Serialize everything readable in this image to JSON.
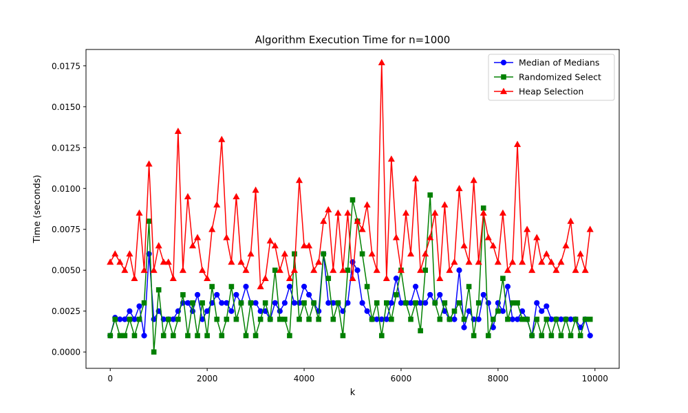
{
  "chart_data": {
    "type": "line",
    "title": "Algorithm Execution Time for n=1000",
    "xlabel": "k",
    "ylabel": "Time (seconds)",
    "xlim": [
      -500,
      10500
    ],
    "ylim": [
      -0.001,
      0.0185
    ],
    "xticks": [
      0,
      2000,
      4000,
      6000,
      8000,
      10000
    ],
    "xtick_labels": [
      "0",
      "2000",
      "4000",
      "6000",
      "8000",
      "10000"
    ],
    "yticks": [
      0.0,
      0.0025,
      0.005,
      0.0075,
      0.01,
      0.0125,
      0.015,
      0.0175
    ],
    "ytick_labels": [
      "0.0000",
      "0.0025",
      "0.0050",
      "0.0075",
      "0.0100",
      "0.0125",
      "0.0150",
      "0.0175"
    ],
    "grid": false,
    "legend": "top-right",
    "series": [
      {
        "name": "Median of Medians",
        "color": "#0000ff",
        "marker": "circle",
        "x": [
          0,
          100,
          200,
          300,
          400,
          500,
          600,
          700,
          800,
          900,
          1000,
          1100,
          1200,
          1300,
          1400,
          1500,
          1600,
          1700,
          1800,
          1900,
          2000,
          2100,
          2200,
          2300,
          2400,
          2500,
          2600,
          2700,
          2800,
          2900,
          3000,
          3100,
          3200,
          3300,
          3400,
          3500,
          3600,
          3700,
          3800,
          3900,
          4000,
          4100,
          4200,
          4300,
          4400,
          4500,
          4600,
          4700,
          4800,
          4900,
          5000,
          5100,
          5200,
          5300,
          5400,
          5500,
          5600,
          5700,
          5800,
          5900,
          6000,
          6100,
          6200,
          6300,
          6400,
          6500,
          6600,
          6700,
          6800,
          6900,
          7000,
          7100,
          7200,
          7300,
          7400,
          7500,
          7600,
          7700,
          7800,
          7900,
          8000,
          8100,
          8200,
          8300,
          8400,
          8500,
          8600,
          8700,
          8800,
          8900,
          9000,
          9100,
          9200,
          9300,
          9400,
          9500,
          9600,
          9700,
          9800,
          9900
        ],
        "y": [
          0.001,
          0.0021,
          0.002,
          0.002,
          0.0025,
          0.002,
          0.0028,
          0.001,
          0.006,
          0.002,
          0.0025,
          0.002,
          0.002,
          0.002,
          0.0025,
          0.003,
          0.003,
          0.0025,
          0.0035,
          0.002,
          0.0025,
          0.003,
          0.0035,
          0.003,
          0.003,
          0.0025,
          0.0035,
          0.003,
          0.004,
          0.003,
          0.003,
          0.0025,
          0.0025,
          0.002,
          0.003,
          0.0025,
          0.003,
          0.004,
          0.003,
          0.003,
          0.004,
          0.0035,
          0.003,
          0.0025,
          0.006,
          0.003,
          0.003,
          0.003,
          0.0025,
          0.003,
          0.0055,
          0.005,
          0.003,
          0.0025,
          0.002,
          0.002,
          0.002,
          0.002,
          0.003,
          0.0045,
          0.003,
          0.003,
          0.003,
          0.004,
          0.003,
          0.003,
          0.0035,
          0.003,
          0.0035,
          0.0025,
          0.002,
          0.002,
          0.005,
          0.0015,
          0.0025,
          0.002,
          0.002,
          0.0035,
          0.003,
          0.0015,
          0.003,
          0.0025,
          0.004,
          0.002,
          0.002,
          0.0025,
          0.002,
          0.001,
          0.003,
          0.0025,
          0.0028,
          0.002,
          0.002,
          0.002,
          0.002,
          0.002,
          0.002,
          0.0015,
          0.002,
          0.001
        ]
      },
      {
        "name": "Randomized Select",
        "color": "#008000",
        "marker": "square",
        "x": [
          0,
          100,
          200,
          300,
          400,
          500,
          600,
          700,
          800,
          900,
          1000,
          1100,
          1200,
          1300,
          1400,
          1500,
          1600,
          1700,
          1800,
          1900,
          2000,
          2100,
          2200,
          2300,
          2400,
          2500,
          2600,
          2700,
          2800,
          2900,
          3000,
          3100,
          3200,
          3300,
          3400,
          3500,
          3600,
          3700,
          3800,
          3900,
          4000,
          4100,
          4200,
          4300,
          4400,
          4500,
          4600,
          4700,
          4800,
          4900,
          5000,
          5100,
          5200,
          5300,
          5400,
          5500,
          5600,
          5700,
          5800,
          5900,
          6000,
          6100,
          6200,
          6300,
          6400,
          6500,
          6600,
          6700,
          6800,
          6900,
          7000,
          7100,
          7200,
          7300,
          7400,
          7500,
          7600,
          7700,
          7800,
          7900,
          8000,
          8100,
          8200,
          8300,
          8400,
          8500,
          8600,
          8700,
          8800,
          8900,
          9000,
          9100,
          9200,
          9300,
          9400,
          9500,
          9600,
          9700,
          9800,
          9900
        ],
        "y": [
          0.001,
          0.002,
          0.001,
          0.001,
          0.002,
          0.001,
          0.002,
          0.003,
          0.008,
          0.0,
          0.0038,
          0.001,
          0.002,
          0.001,
          0.002,
          0.0035,
          0.001,
          0.003,
          0.001,
          0.003,
          0.001,
          0.004,
          0.002,
          0.001,
          0.002,
          0.004,
          0.002,
          0.003,
          0.001,
          0.003,
          0.001,
          0.002,
          0.003,
          0.002,
          0.005,
          0.002,
          0.002,
          0.001,
          0.006,
          0.002,
          0.003,
          0.002,
          0.003,
          0.002,
          0.006,
          0.0045,
          0.002,
          0.003,
          0.001,
          0.005,
          0.0093,
          0.008,
          0.006,
          0.004,
          0.002,
          0.003,
          0.001,
          0.003,
          0.002,
          0.0035,
          0.005,
          0.003,
          0.002,
          0.003,
          0.0013,
          0.005,
          0.0096,
          0.003,
          0.002,
          0.003,
          0.002,
          0.0025,
          0.003,
          0.002,
          0.004,
          0.001,
          0.003,
          0.0088,
          0.001,
          0.002,
          0.0025,
          0.0045,
          0.002,
          0.003,
          0.003,
          0.002,
          0.002,
          0.001,
          0.002,
          0.001,
          0.002,
          0.001,
          0.002,
          0.001,
          0.002,
          0.001,
          0.002,
          0.001,
          0.002,
          0.002
        ]
      },
      {
        "name": "Heap Selection",
        "color": "#ff0000",
        "marker": "triangle",
        "x": [
          0,
          100,
          200,
          300,
          400,
          500,
          600,
          700,
          800,
          900,
          1000,
          1100,
          1200,
          1300,
          1400,
          1500,
          1600,
          1700,
          1800,
          1900,
          2000,
          2100,
          2200,
          2300,
          2400,
          2500,
          2600,
          2700,
          2800,
          2900,
          3000,
          3100,
          3200,
          3300,
          3400,
          3500,
          3600,
          3700,
          3800,
          3900,
          4000,
          4100,
          4200,
          4300,
          4400,
          4500,
          4600,
          4700,
          4800,
          4900,
          5000,
          5100,
          5200,
          5300,
          5400,
          5500,
          5600,
          5700,
          5800,
          5900,
          6000,
          6100,
          6200,
          6300,
          6400,
          6500,
          6600,
          6700,
          6800,
          6900,
          7000,
          7100,
          7200,
          7300,
          7400,
          7500,
          7600,
          7700,
          7800,
          7900,
          8000,
          8100,
          8200,
          8300,
          8400,
          8500,
          8600,
          8700,
          8800,
          8900,
          9000,
          9100,
          9200,
          9300,
          9400,
          9500,
          9600,
          9700,
          9800,
          9900
        ],
        "y": [
          0.0055,
          0.006,
          0.0055,
          0.005,
          0.006,
          0.0045,
          0.0085,
          0.005,
          0.0115,
          0.005,
          0.0065,
          0.0055,
          0.0055,
          0.0045,
          0.0135,
          0.005,
          0.0095,
          0.0065,
          0.007,
          0.005,
          0.0045,
          0.0075,
          0.009,
          0.013,
          0.007,
          0.0055,
          0.0095,
          0.0055,
          0.005,
          0.006,
          0.0099,
          0.004,
          0.0045,
          0.0068,
          0.0065,
          0.005,
          0.006,
          0.0045,
          0.005,
          0.0105,
          0.0065,
          0.0065,
          0.005,
          0.0055,
          0.008,
          0.0087,
          0.005,
          0.0085,
          0.005,
          0.0085,
          0.0045,
          0.008,
          0.0075,
          0.009,
          0.006,
          0.005,
          0.0177,
          0.0045,
          0.0118,
          0.007,
          0.005,
          0.0085,
          0.006,
          0.0106,
          0.005,
          0.006,
          0.007,
          0.0085,
          0.0045,
          0.009,
          0.005,
          0.0055,
          0.01,
          0.0065,
          0.0055,
          0.0105,
          0.0055,
          0.0085,
          0.007,
          0.0065,
          0.0055,
          0.0085,
          0.005,
          0.0055,
          0.0127,
          0.0055,
          0.0075,
          0.005,
          0.007,
          0.0055,
          0.006,
          0.0055,
          0.005,
          0.0055,
          0.0065,
          0.008,
          0.005,
          0.006,
          0.005,
          0.0075
        ]
      }
    ]
  }
}
